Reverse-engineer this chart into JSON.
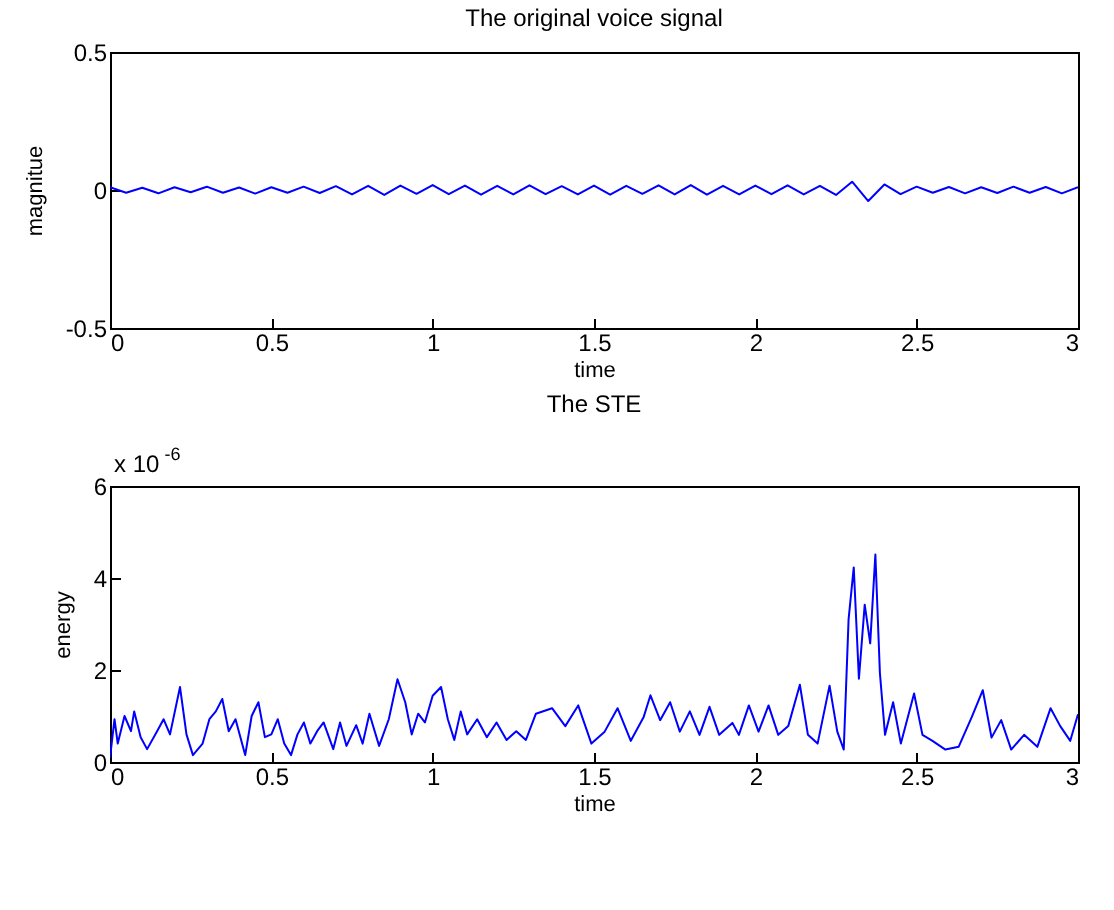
{
  "chart_data": [
    {
      "type": "line",
      "title": "The original voice signal",
      "xlabel": "time",
      "ylabel": "magnitue",
      "x": [
        0,
        0.05,
        0.1,
        0.15,
        0.2,
        0.25,
        0.3,
        0.35,
        0.4,
        0.45,
        0.5,
        0.55,
        0.6,
        0.65,
        0.7,
        0.75,
        0.8,
        0.85,
        0.9,
        0.95,
        1.0,
        1.05,
        1.1,
        1.15,
        1.2,
        1.25,
        1.3,
        1.35,
        1.4,
        1.45,
        1.5,
        1.55,
        1.6,
        1.65,
        1.7,
        1.75,
        1.8,
        1.85,
        1.9,
        1.95,
        2.0,
        2.05,
        2.1,
        2.15,
        2.2,
        2.25,
        2.3,
        2.35,
        2.4,
        2.45,
        2.5,
        2.55,
        2.6,
        2.65,
        2.7,
        2.75,
        2.8,
        2.85,
        2.9,
        2.95,
        3.0
      ],
      "series": [
        {
          "color": "#0000ff",
          "values": [
            0.01,
            -0.01,
            0.008,
            -0.012,
            0.01,
            -0.008,
            0.012,
            -0.01,
            0.009,
            -0.013,
            0.01,
            -0.01,
            0.012,
            -0.011,
            0.014,
            -0.016,
            0.015,
            -0.018,
            0.016,
            -0.014,
            0.018,
            -0.015,
            0.016,
            -0.017,
            0.015,
            -0.016,
            0.017,
            -0.015,
            0.014,
            -0.016,
            0.016,
            -0.017,
            0.015,
            -0.014,
            0.017,
            -0.016,
            0.018,
            -0.017,
            0.015,
            -0.016,
            0.016,
            -0.015,
            0.017,
            -0.016,
            0.015,
            -0.018,
            0.03,
            -0.04,
            0.02,
            -0.015,
            0.012,
            -0.01,
            0.011,
            -0.012,
            0.01,
            -0.011,
            0.012,
            -0.01,
            0.011,
            -0.012,
            0.01
          ]
        }
      ],
      "xlim": [
        0,
        3
      ],
      "ylim": [
        -0.5,
        0.5
      ],
      "xticks": [
        0,
        0.5,
        1,
        1.5,
        2,
        2.5,
        3
      ],
      "yticks": [
        -0.5,
        0,
        0.5
      ],
      "grid": false
    },
    {
      "type": "line",
      "title": "The STE",
      "xlabel": "time",
      "ylabel": "energy",
      "annotations": [
        "x 10$^{-6}$"
      ],
      "x": [
        0,
        0.014,
        0.024,
        0.045,
        0.065,
        0.075,
        0.095,
        0.115,
        0.146,
        0.166,
        0.186,
        0.217,
        0.237,
        0.257,
        0.287,
        0.308,
        0.328,
        0.348,
        0.368,
        0.389,
        0.419,
        0.439,
        0.46,
        0.48,
        0.5,
        0.52,
        0.54,
        0.561,
        0.581,
        0.601,
        0.621,
        0.642,
        0.662,
        0.692,
        0.713,
        0.733,
        0.763,
        0.783,
        0.804,
        0.834,
        0.864,
        0.891,
        0.915,
        0.935,
        0.955,
        0.976,
        1.0,
        1.026,
        1.047,
        1.067,
        1.087,
        1.107,
        1.138,
        1.168,
        1.198,
        1.229,
        1.259,
        1.289,
        1.32,
        1.37,
        1.411,
        1.451,
        1.492,
        1.533,
        1.573,
        1.614,
        1.654,
        1.675,
        1.705,
        1.736,
        1.766,
        1.797,
        1.827,
        1.858,
        1.888,
        1.929,
        1.949,
        1.98,
        2.01,
        2.041,
        2.071,
        2.102,
        2.138,
        2.163,
        2.193,
        2.23,
        2.254,
        2.274,
        2.289,
        2.305,
        2.321,
        2.339,
        2.356,
        2.372,
        2.386,
        2.402,
        2.427,
        2.451,
        2.492,
        2.518,
        2.549,
        2.589,
        2.63,
        2.671,
        2.705,
        2.732,
        2.762,
        2.793,
        2.833,
        2.874,
        2.915,
        2.945,
        2.976,
        3.0
      ],
      "series": [
        {
          "color": "#0000ff",
          "values": [
            0.09,
            0.93,
            0.4,
            1.0,
            0.67,
            1.1,
            0.54,
            0.28,
            0.67,
            0.93,
            0.6,
            1.63,
            0.6,
            0.15,
            0.4,
            0.93,
            1.1,
            1.37,
            0.67,
            0.93,
            0.15,
            1.0,
            1.3,
            0.54,
            0.6,
            0.93,
            0.4,
            0.15,
            0.6,
            0.86,
            0.4,
            0.67,
            0.86,
            0.28,
            0.86,
            0.35,
            0.8,
            0.4,
            1.05,
            0.35,
            0.93,
            1.8,
            1.3,
            0.6,
            1.05,
            0.86,
            1.44,
            1.63,
            0.93,
            0.48,
            1.1,
            0.6,
            0.93,
            0.54,
            0.86,
            0.48,
            0.67,
            0.48,
            1.05,
            1.17,
            0.78,
            1.23,
            0.4,
            0.66,
            1.17,
            0.46,
            0.98,
            1.45,
            0.91,
            1.3,
            0.66,
            1.1,
            0.59,
            1.2,
            0.59,
            0.85,
            0.59,
            1.23,
            0.66,
            1.23,
            0.59,
            0.78,
            1.68,
            0.59,
            0.4,
            1.66,
            0.66,
            0.27,
            3.1,
            4.23,
            1.81,
            3.42,
            2.58,
            4.51,
            1.94,
            0.59,
            1.3,
            0.4,
            1.49,
            0.59,
            0.46,
            0.27,
            0.33,
            0.98,
            1.56,
            0.53,
            0.91,
            0.27,
            0.59,
            0.33,
            1.17,
            0.78,
            0.46,
            1.04
          ]
        }
      ],
      "xlim": [
        0,
        3
      ],
      "ylim": [
        0,
        6
      ],
      "xticks": [
        0,
        0.5,
        1,
        1.5,
        2,
        2.5,
        3
      ],
      "yticks": [
        0,
        2,
        4,
        6
      ],
      "grid": false
    }
  ]
}
